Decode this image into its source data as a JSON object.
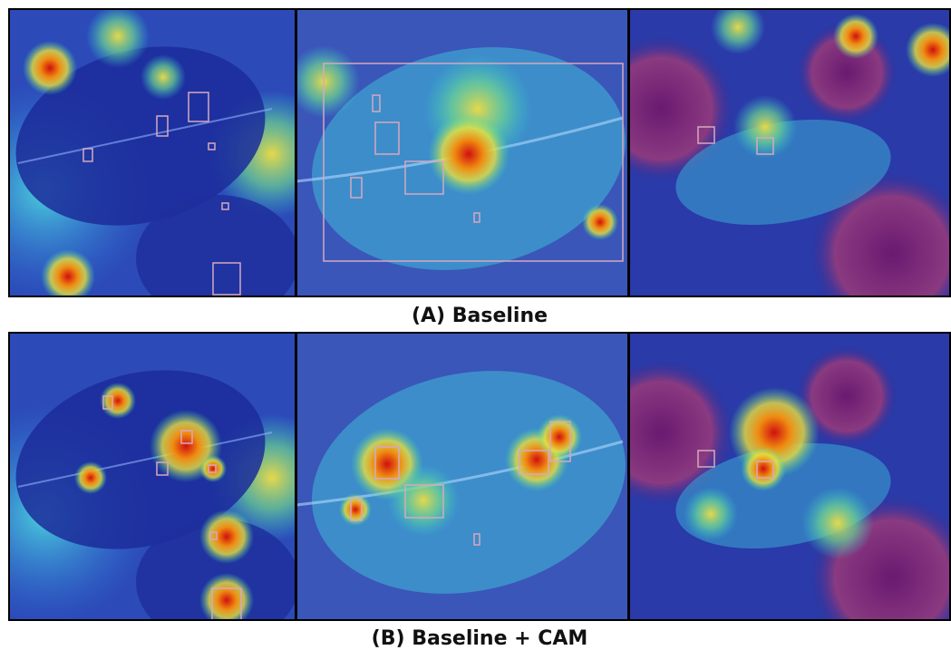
{
  "rows": [
    {
      "caption": "(A) Baseline"
    },
    {
      "caption": "(B) Baseline + CAM"
    }
  ]
}
